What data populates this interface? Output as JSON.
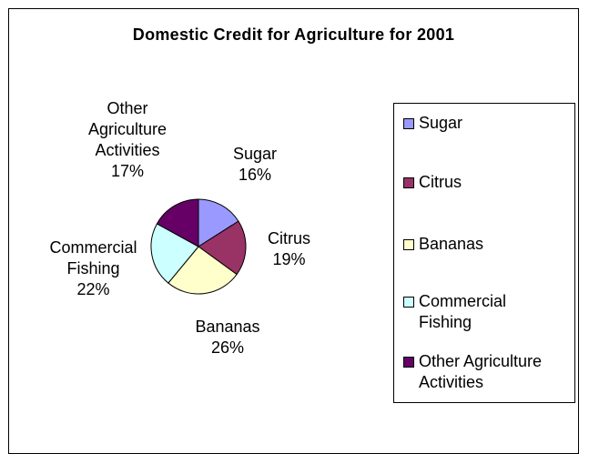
{
  "chart_data": {
    "type": "pie",
    "title": "Domestic Credit for Agriculture for 2001",
    "slices": [
      {
        "name": "Sugar",
        "value": 16,
        "label": "16%",
        "color": "#9999ff",
        "label_lines": [
          "Sugar",
          "16%"
        ],
        "legend_lines": [
          "Sugar"
        ]
      },
      {
        "name": "Citrus",
        "value": 19,
        "label": "19%",
        "color": "#993366",
        "label_lines": [
          "Citrus",
          "19%"
        ],
        "legend_lines": [
          "Citrus"
        ]
      },
      {
        "name": "Bananas",
        "value": 26,
        "label": "26%",
        "color": "#ffffcc",
        "label_lines": [
          "Bananas",
          "26%"
        ],
        "legend_lines": [
          "Bananas"
        ]
      },
      {
        "name": "Commercial Fishing",
        "value": 22,
        "label": "22%",
        "color": "#ccffff",
        "label_lines": [
          "Commercial",
          "Fishing",
          "22%"
        ],
        "legend_lines": [
          "Commercial",
          "Fishing"
        ]
      },
      {
        "name": "Other Agriculture Activities",
        "value": 17,
        "label": "17%",
        "color": "#660066",
        "label_lines": [
          "Other",
          "Agriculture",
          "Activities",
          "17%"
        ],
        "legend_lines": [
          "Other Agriculture",
          "Activities"
        ]
      }
    ],
    "legend_position": "right",
    "start_angle": "12 o'clock",
    "direction": "clockwise"
  }
}
